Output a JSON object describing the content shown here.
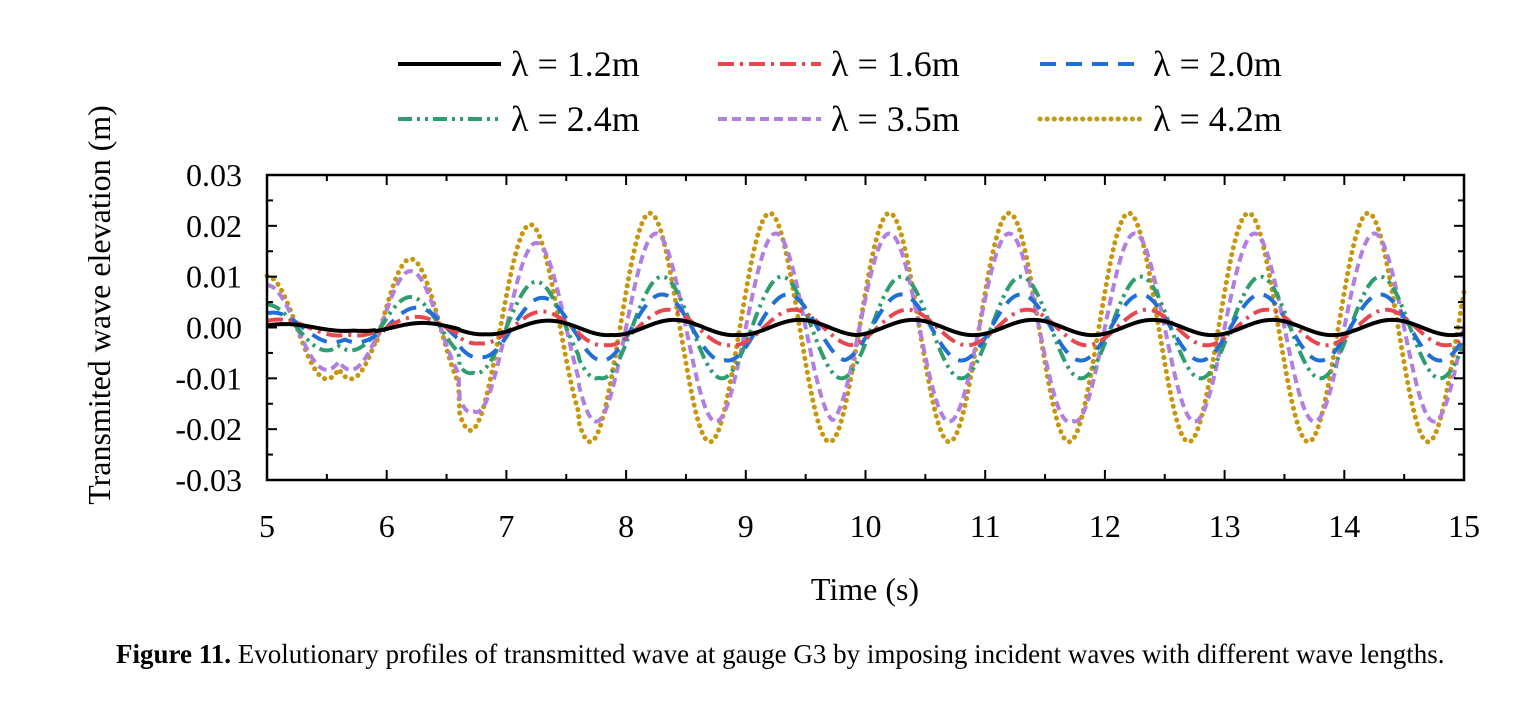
{
  "chart_data": {
    "type": "line",
    "title": "",
    "xlabel": "Time (s)",
    "ylabel": "Transmited wave elevation (m)",
    "xlim": [
      5,
      15
    ],
    "ylim": [
      -0.03,
      0.03
    ],
    "x_ticks": [
      "5",
      "6",
      "7",
      "8",
      "9",
      "10",
      "11",
      "12",
      "13",
      "14",
      "15"
    ],
    "y_ticks": [
      "-0.03",
      "-0.02",
      "-0.01",
      "0.00",
      "0.01",
      "0.02",
      "0.03"
    ],
    "grid": false,
    "legend_position": "top",
    "period_s": 1.0,
    "series": [
      {
        "name": "λ = 1.2m",
        "color": "#000000",
        "dash": "solid",
        "amplitude_m": 0.0015,
        "crest_times_s": [
          5.15,
          6.3,
          7.35,
          8.4,
          9.45,
          10.4,
          11.4,
          12.4,
          13.4,
          14.4
        ]
      },
      {
        "name": "λ = 1.6m",
        "color": "#e8474f",
        "dash": "dash-dot",
        "amplitude_m": 0.0035,
        "crest_times_s": [
          5.1,
          6.25,
          7.3,
          8.35,
          9.4,
          10.35,
          11.35,
          12.35,
          13.35,
          14.35
        ]
      },
      {
        "name": "λ = 2.0m",
        "color": "#1f6fd6",
        "dash": "dashed",
        "amplitude_m": 0.0065,
        "crest_times_s": [
          5.05,
          6.25,
          7.3,
          8.3,
          9.35,
          10.3,
          11.3,
          12.3,
          13.3,
          14.3
        ]
      },
      {
        "name": "λ = 2.4m",
        "color": "#2f9e6e",
        "dash": "dash-dot-dot",
        "amplitude_m": 0.01,
        "crest_times_s": [
          5.0,
          6.2,
          7.25,
          8.3,
          9.3,
          10.3,
          11.3,
          12.3,
          13.3,
          14.3
        ]
      },
      {
        "name": "λ = 3.5m",
        "color": "#b07fe0",
        "dash": "short-dash",
        "amplitude_m": 0.0185,
        "crest_times_s": [
          5.0,
          6.2,
          7.25,
          8.25,
          9.25,
          10.2,
          11.2,
          12.25,
          13.25,
          14.25
        ]
      },
      {
        "name": "λ = 4.2m",
        "color": "#c8960a",
        "dash": "dotted",
        "amplitude_m": 0.0225,
        "crest_times_s": [
          5.0,
          6.2,
          7.2,
          8.2,
          9.2,
          10.2,
          11.2,
          12.2,
          13.2,
          14.2
        ]
      }
    ]
  },
  "caption": {
    "label": "Figure 11.",
    "text": " Evolutionary profiles of transmitted wave at gauge G3 by imposing incident waves with different wave lengths."
  }
}
